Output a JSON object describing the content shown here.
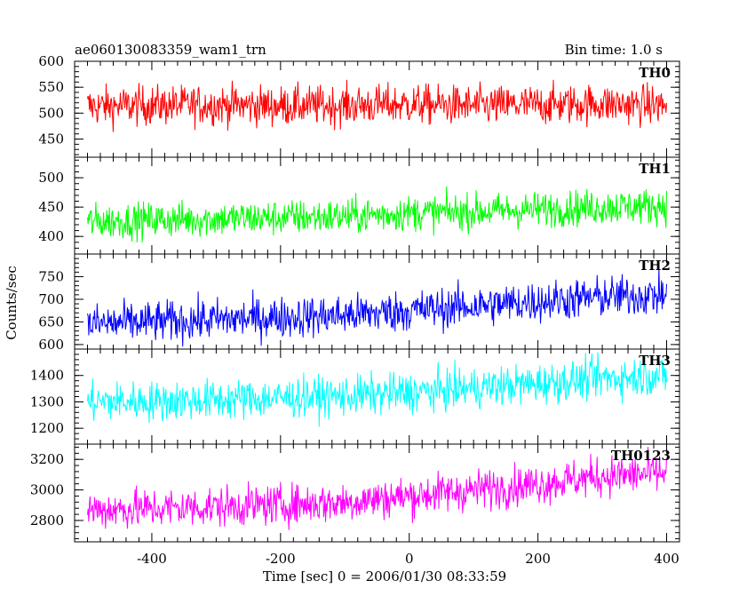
{
  "header": {
    "title": "ae060130083359_wam1_trn",
    "bin_time": "Bin time: 1.0 s"
  },
  "chart_data": {
    "type": "line",
    "title": "ae060130083359_wam1_trn",
    "subtitle": "Bin time: 1.0 s",
    "xlabel": "Time [sec] 0 = 2006/01/30 08:33:59",
    "ylabel": "Counts/sec",
    "xlim": [
      -520,
      420
    ],
    "x_ticks": [
      -400,
      -200,
      0,
      200,
      400
    ],
    "x_range_data": [
      -500,
      400
    ],
    "bin_seconds": 1.0,
    "grid": false,
    "panels": [
      {
        "name": "TH0",
        "color": "#ff0000",
        "ylim": [
          415,
          600
        ],
        "y_ticks": [
          450,
          500,
          550,
          600
        ],
        "trend": {
          "x": [
            -500,
            -400,
            -300,
            -200,
            -100,
            0,
            100,
            200,
            300,
            400
          ],
          "y": [
            513,
            515,
            516,
            514,
            515,
            517,
            514,
            516,
            518,
            515
          ]
        },
        "noise_amplitude": 38
      },
      {
        "name": "TH1",
        "color": "#00ff00",
        "ylim": [
          370,
          535
        ],
        "y_ticks": [
          400,
          450,
          500
        ],
        "trend": {
          "x": [
            -500,
            -400,
            -300,
            -200,
            -100,
            0,
            100,
            200,
            300,
            400
          ],
          "y": [
            425,
            428,
            430,
            432,
            434,
            440,
            442,
            446,
            450,
            452
          ]
        },
        "noise_amplitude": 30
      },
      {
        "name": "TH2",
        "color": "#0000ff",
        "ylim": [
          590,
          800
        ],
        "y_ticks": [
          600,
          650,
          700,
          750
        ],
        "trend": {
          "x": [
            -500,
            -400,
            -300,
            -200,
            -100,
            0,
            100,
            200,
            300,
            400
          ],
          "y": [
            645,
            650,
            655,
            660,
            665,
            675,
            685,
            695,
            705,
            710
          ]
        },
        "noise_amplitude": 45
      },
      {
        "name": "TH3",
        "color": "#00ffff",
        "ylim": [
          1140,
          1500
        ],
        "y_ticks": [
          1200,
          1300,
          1400
        ],
        "trend": {
          "x": [
            -500,
            -400,
            -300,
            -200,
            -100,
            0,
            100,
            200,
            300,
            400
          ],
          "y": [
            1300,
            1302,
            1308,
            1315,
            1322,
            1335,
            1352,
            1370,
            1390,
            1400
          ]
        },
        "noise_amplitude": 75
      },
      {
        "name": "TH0123",
        "color": "#ff00ff",
        "ylim": [
          2660,
          3300
        ],
        "y_ticks": [
          2800,
          3000,
          3200
        ],
        "trend": {
          "x": [
            -500,
            -400,
            -300,
            -200,
            -100,
            0,
            100,
            200,
            300,
            400
          ],
          "y": [
            2870,
            2878,
            2890,
            2902,
            2920,
            2960,
            3000,
            3040,
            3090,
            3110
          ]
        },
        "noise_amplitude": 130
      }
    ]
  }
}
